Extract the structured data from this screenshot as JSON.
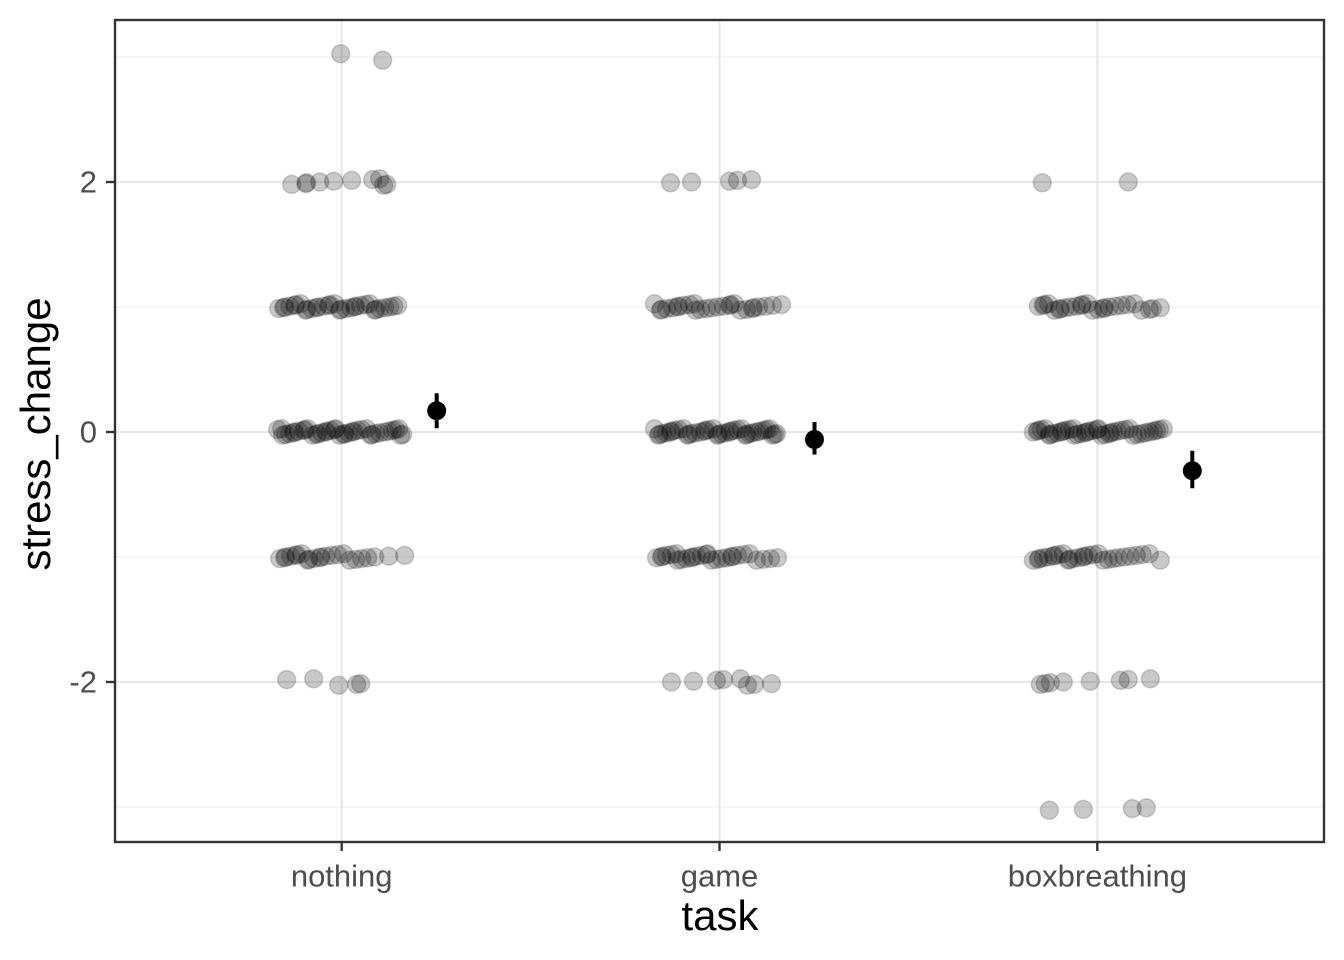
{
  "chart_data": {
    "type": "scatter",
    "subtype": "jitter-with-mean-pointrange",
    "title": "",
    "xlabel": "task",
    "ylabel": "stress_change",
    "categories": [
      "nothing",
      "game",
      "boxbreathing"
    ],
    "y_axis": {
      "major_ticks": [
        2,
        0,
        -2
      ],
      "major_tick_labels": [
        "2",
        "0",
        "-2"
      ],
      "minor_gridlines": [
        3,
        1,
        -1,
        -3
      ],
      "lim": [
        -3.3,
        3.3
      ]
    },
    "grid": "on",
    "legend": "none",
    "jitter_points": [
      {
        "task": "nothing",
        "value": 3,
        "dx": [
          -1,
          41
        ]
      },
      {
        "task": "nothing",
        "value": 2,
        "dx": [
          -50,
          -36,
          -35,
          -22,
          -8,
          10,
          31,
          38,
          42,
          45
        ]
      },
      {
        "task": "nothing",
        "value": 1,
        "dx": [
          -63,
          -58,
          -57,
          -52,
          -47,
          -46,
          -41,
          -36,
          -35,
          -30,
          -25,
          -24,
          -18,
          -13,
          -12,
          -7,
          -2,
          -1,
          4,
          9,
          13,
          14,
          19,
          24,
          28,
          33,
          34,
          38,
          43,
          48,
          52,
          56
        ]
      },
      {
        "task": "nothing",
        "value": 0,
        "dx": [
          -64,
          -60,
          -59,
          -56,
          -52,
          -48,
          -47,
          -43,
          -38,
          -37,
          -34,
          -29,
          -25,
          -24,
          -20,
          -16,
          -15,
          -11,
          -7,
          -6,
          -2,
          2,
          3,
          7,
          11,
          12,
          16,
          20,
          25,
          29,
          30,
          34,
          38,
          43,
          47,
          51,
          54,
          57,
          59,
          61
        ]
      },
      {
        "task": "nothing",
        "value": -1,
        "dx": [
          -62,
          -57,
          -56,
          -51,
          -46,
          -45,
          -40,
          -34,
          -33,
          -28,
          -22,
          -21,
          -16,
          -10,
          -4,
          2,
          8,
          14,
          20,
          26,
          33,
          47,
          63
        ]
      },
      {
        "task": "nothing",
        "value": -2,
        "dx": [
          -55,
          -28,
          -3,
          15,
          19
        ]
      },
      {
        "task": "game",
        "value": 2,
        "dx": [
          -49,
          -28,
          10,
          18,
          32
        ]
      },
      {
        "task": "game",
        "value": 1,
        "dx": [
          -65,
          -59,
          -58,
          -53,
          -47,
          -42,
          -41,
          -36,
          -30,
          -25,
          -24,
          -19,
          -13,
          -8,
          -2,
          4,
          10,
          11,
          15,
          21,
          27,
          33,
          34,
          39,
          46,
          53,
          62
        ]
      },
      {
        "task": "game",
        "value": 0,
        "dx": [
          -65,
          -61,
          -60,
          -57,
          -53,
          -49,
          -48,
          -45,
          -41,
          -36,
          -32,
          -31,
          -28,
          -24,
          -19,
          -15,
          -14,
          -11,
          -6,
          -2,
          -1,
          2,
          6,
          10,
          11,
          14,
          18,
          22,
          26,
          27,
          30,
          33,
          37,
          40,
          44,
          47,
          50,
          53,
          55,
          57
        ]
      },
      {
        "task": "game",
        "value": -1,
        "dx": [
          -63,
          -58,
          -57,
          -53,
          -48,
          -43,
          -42,
          -38,
          -33,
          -28,
          -27,
          -23,
          -18,
          -13,
          -12,
          -8,
          -3,
          2,
          7,
          12,
          13,
          18,
          24,
          30,
          37,
          44,
          51,
          58
        ]
      },
      {
        "task": "game",
        "value": -2,
        "dx": [
          -48,
          -26,
          -3,
          4,
          21,
          28,
          35,
          52
        ]
      },
      {
        "task": "boxbreathing",
        "value": 2,
        "dx": [
          -55,
          31
        ]
      },
      {
        "task": "boxbreathing",
        "value": 1,
        "dx": [
          -59,
          -54,
          -53,
          -49,
          -43,
          -38,
          -37,
          -32,
          -27,
          -21,
          -16,
          -15,
          -10,
          -5,
          1,
          6,
          7,
          12,
          18,
          24,
          30,
          37,
          44,
          52,
          55,
          63
        ]
      },
      {
        "task": "boxbreathing",
        "value": 0,
        "dx": [
          -64,
          -60,
          -59,
          -56,
          -52,
          -48,
          -47,
          -44,
          -40,
          -36,
          -35,
          -32,
          -28,
          -24,
          -23,
          -20,
          -16,
          -12,
          -11,
          -8,
          -4,
          0,
          1,
          4,
          8,
          12,
          13,
          16,
          20,
          24,
          28,
          32,
          36,
          40,
          44,
          48,
          52,
          56,
          59,
          62,
          66
        ]
      },
      {
        "task": "boxbreathing",
        "value": -1,
        "dx": [
          -64,
          -59,
          -58,
          -54,
          -49,
          -44,
          -43,
          -39,
          -34,
          -29,
          -28,
          -24,
          -19,
          -14,
          -13,
          -9,
          -4,
          1,
          6,
          11,
          16,
          21,
          27,
          33,
          39,
          45,
          52,
          63
        ]
      },
      {
        "task": "boxbreathing",
        "value": -2,
        "dx": [
          -57,
          -52,
          -47,
          -34,
          -7,
          23,
          31,
          53
        ]
      },
      {
        "task": "boxbreathing",
        "value": -3,
        "dx": [
          -48,
          -14,
          35,
          49
        ]
      }
    ],
    "summary_stats": [
      {
        "task": "nothing",
        "mean": 0.17,
        "lo": 0.03,
        "hi": 0.31
      },
      {
        "task": "game",
        "mean": -0.06,
        "lo": -0.18,
        "hi": 0.08
      },
      {
        "task": "boxbreathing",
        "mean": -0.31,
        "lo": -0.45,
        "hi": -0.15
      }
    ]
  },
  "colors": {
    "background": "#ffffff",
    "panel_border": "#333333",
    "grid_major": "#e8e8e8",
    "grid_minor": "#f3f3f3",
    "tick_mark": "#333333",
    "axis_text": "#4d4d4d",
    "axis_title": "#000000",
    "point_fill": "#000000",
    "point_alpha": 0.21,
    "summary_color": "#000000"
  }
}
